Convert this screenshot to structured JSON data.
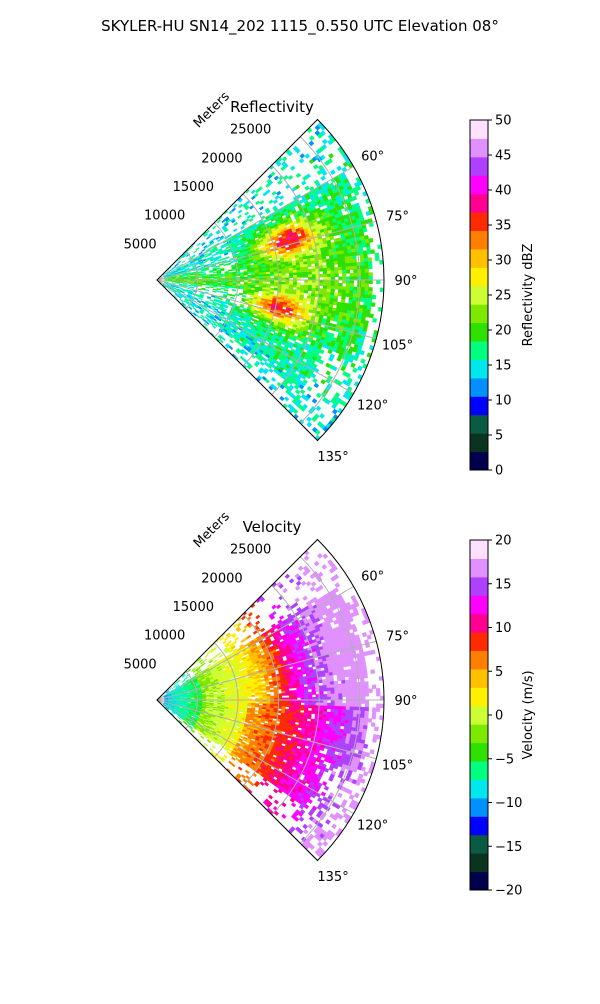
{
  "figure": {
    "title": "SKYLER-HU  SN14_202  1115_0.550 UTC Elevation 08°"
  },
  "chart_data": [
    {
      "type": "heatmap",
      "title": "Reflectivity",
      "range_label": "Meters",
      "range_ticks": [
        "5000",
        "10000",
        "15000",
        "20000",
        "25000"
      ],
      "range_values": [
        5000,
        10000,
        15000,
        20000,
        25000
      ],
      "rmax": 28000,
      "azimuth_ticks": [
        "60°",
        "75°",
        "90°",
        "105°",
        "120°",
        "135°"
      ],
      "azimuth_values": [
        60,
        75,
        90,
        105,
        120,
        135
      ],
      "azimuth_range": [
        45,
        135
      ],
      "colorbar": {
        "label": "Reflectivity dBZ",
        "min": 0,
        "max": 50,
        "tick_values": [
          0,
          5,
          10,
          15,
          20,
          25,
          30,
          35,
          40,
          45,
          50
        ],
        "tick_labels": [
          "0",
          "5",
          "10",
          "15",
          "20",
          "25",
          "30",
          "35",
          "40",
          "45",
          "50"
        ]
      }
    },
    {
      "type": "heatmap",
      "title": "Velocity",
      "range_label": "Meters",
      "range_ticks": [
        "5000",
        "10000",
        "15000",
        "20000",
        "25000"
      ],
      "range_values": [
        5000,
        10000,
        15000,
        20000,
        25000
      ],
      "rmax": 28000,
      "azimuth_ticks": [
        "60°",
        "75°",
        "90°",
        "105°",
        "120°",
        "135°"
      ],
      "azimuth_values": [
        60,
        75,
        90,
        105,
        120,
        135
      ],
      "azimuth_range": [
        45,
        135
      ],
      "colorbar": {
        "label": "Velocity (m/s)",
        "min": -20,
        "max": 20,
        "tick_values": [
          -20,
          -15,
          -10,
          -5,
          0,
          5,
          10,
          15,
          20
        ],
        "tick_labels": [
          "−20",
          "−15",
          "−10",
          "−5",
          "0",
          "5",
          "10",
          "15",
          "20"
        ]
      }
    }
  ],
  "colormap": [
    "#00004c",
    "#0a3320",
    "#0b5a44",
    "#0000ff",
    "#0090ff",
    "#00e8ee",
    "#00ff80",
    "#2ee000",
    "#7de800",
    "#ccff33",
    "#fff000",
    "#ffc000",
    "#ff8000",
    "#ff2a00",
    "#ff0090",
    "#ff00ff",
    "#b040ff",
    "#e090ff",
    "#ffe0ff"
  ]
}
